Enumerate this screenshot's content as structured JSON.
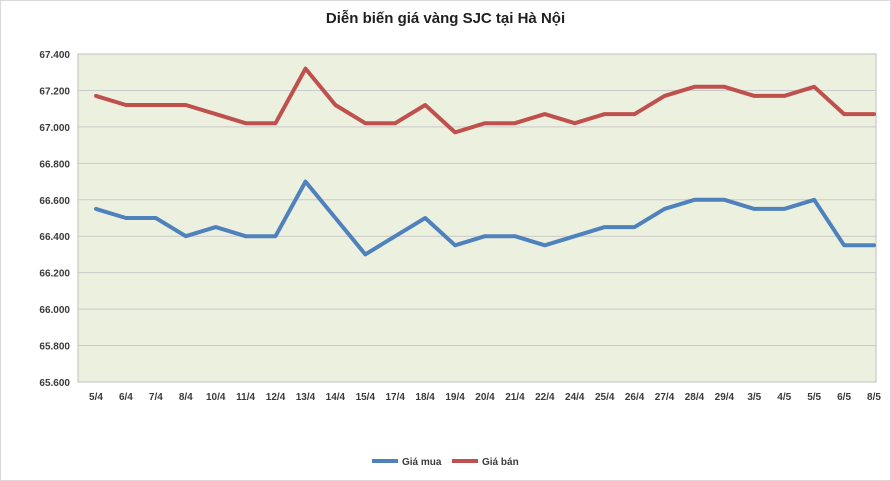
{
  "chart_data": {
    "type": "line",
    "title": "Diễn biến giá vàng SJC tại Hà Nội",
    "xlabel": "",
    "ylabel": "",
    "ylim": [
      65600,
      67400
    ],
    "ystep": 200,
    "y_tick_labels": [
      "65.600",
      "65.800",
      "66.000",
      "66.200",
      "66.400",
      "66.600",
      "66.800",
      "67.000",
      "67.200",
      "67.400"
    ],
    "grid": true,
    "legend_position": "bottom",
    "categories": [
      "5/4",
      "6/4",
      "7/4",
      "8/4",
      "10/4",
      "11/4",
      "12/4",
      "13/4",
      "14/4",
      "15/4",
      "17/4",
      "18/4",
      "19/4",
      "20/4",
      "21/4",
      "22/4",
      "24/4",
      "25/4",
      "26/4",
      "27/4",
      "28/4",
      "29/4",
      "3/5",
      "4/5",
      "5/5",
      "6/5",
      "8/5"
    ],
    "series": [
      {
        "name": "Giá mua",
        "color": "#4f81bd",
        "values": [
          66550,
          66500,
          66500,
          66400,
          66450,
          66400,
          66400,
          66700,
          66500,
          66300,
          66400,
          66500,
          66350,
          66400,
          66400,
          66350,
          66400,
          66450,
          66450,
          66550,
          66600,
          66600,
          66550,
          66550,
          66600,
          66350,
          66350
        ]
      },
      {
        "name": "Giá bán",
        "color": "#c0504d",
        "values": [
          67170,
          67120,
          67120,
          67120,
          67070,
          67020,
          67020,
          67320,
          67120,
          67020,
          67020,
          67120,
          66970,
          67020,
          67020,
          67070,
          67020,
          67070,
          67070,
          67170,
          67220,
          67220,
          67170,
          67170,
          67220,
          67070,
          67070
        ]
      }
    ]
  }
}
